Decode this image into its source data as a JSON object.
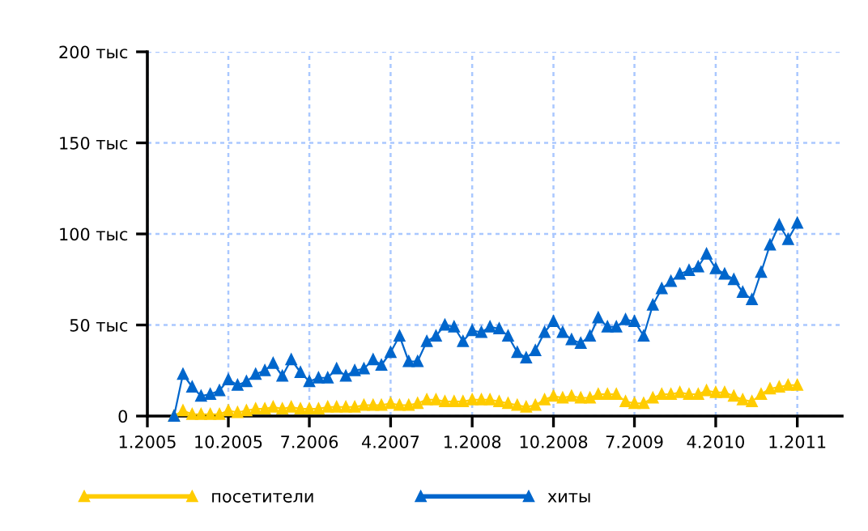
{
  "chart_data": {
    "type": "line",
    "x": [
      "2005-04",
      "2005-05",
      "2005-06",
      "2005-07",
      "2005-08",
      "2005-09",
      "2005-10",
      "2005-11",
      "2005-12",
      "2006-01",
      "2006-02",
      "2006-03",
      "2006-04",
      "2006-05",
      "2006-06",
      "2006-07",
      "2006-08",
      "2006-09",
      "2006-10",
      "2006-11",
      "2006-12",
      "2007-01",
      "2007-02",
      "2007-03",
      "2007-04",
      "2007-05",
      "2007-06",
      "2007-07",
      "2007-08",
      "2007-09",
      "2007-10",
      "2007-11",
      "2007-12",
      "2008-01",
      "2008-02",
      "2008-03",
      "2008-04",
      "2008-05",
      "2008-06",
      "2008-07",
      "2008-08",
      "2008-09",
      "2008-10",
      "2008-11",
      "2008-12",
      "2009-01",
      "2009-02",
      "2009-03",
      "2009-04",
      "2009-05",
      "2009-06",
      "2009-07",
      "2009-08",
      "2009-09",
      "2009-10",
      "2009-11",
      "2009-12",
      "2010-01",
      "2010-02",
      "2010-03",
      "2010-04",
      "2010-05",
      "2010-06",
      "2010-07",
      "2010-08",
      "2010-09",
      "2010-10",
      "2010-11",
      "2010-12",
      "2011-01"
    ],
    "series": [
      {
        "name": "посетители",
        "color": "#ffcc00",
        "values": [
          0,
          3,
          1,
          1,
          1,
          1,
          3,
          2,
          3,
          4,
          4,
          5,
          4,
          5,
          4,
          4,
          4,
          5,
          5,
          5,
          5,
          6,
          6,
          6,
          7,
          6,
          6,
          7,
          9,
          9,
          8,
          8,
          8,
          9,
          9,
          9,
          8,
          7,
          6,
          5,
          6,
          9,
          11,
          10,
          11,
          10,
          10,
          12,
          12,
          12,
          8,
          7,
          7,
          10,
          12,
          12,
          13,
          12,
          12,
          14,
          13,
          13,
          11,
          9,
          8,
          12,
          15,
          16,
          17,
          17
        ]
      },
      {
        "name": "хиты",
        "color": "#0066cc",
        "values": [
          0,
          23,
          16,
          11,
          12,
          14,
          20,
          17,
          19,
          23,
          25,
          29,
          22,
          31,
          24,
          19,
          21,
          21,
          26,
          22,
          25,
          26,
          31,
          28,
          35,
          44,
          30,
          30,
          41,
          44,
          50,
          49,
          41,
          47,
          46,
          49,
          48,
          44,
          35,
          32,
          36,
          46,
          52,
          46,
          42,
          40,
          44,
          54,
          49,
          49,
          53,
          52,
          44,
          61,
          70,
          74,
          78,
          80,
          82,
          89,
          81,
          78,
          75,
          68,
          64,
          79,
          94,
          105,
          97,
          106
        ]
      }
    ],
    "xlim": [
      "2005-01",
      "2011-06"
    ],
    "xticks": [
      {
        "value": "2005-01",
        "label": "1.2005"
      },
      {
        "value": "2005-10",
        "label": "10.2005"
      },
      {
        "value": "2006-07",
        "label": "7.2006"
      },
      {
        "value": "2007-04",
        "label": "4.2007"
      },
      {
        "value": "2008-01",
        "label": "1.2008"
      },
      {
        "value": "2008-10",
        "label": "10.2008"
      },
      {
        "value": "2009-07",
        "label": "7.2009"
      },
      {
        "value": "2010-04",
        "label": "4.2010"
      },
      {
        "value": "2011-01",
        "label": "1.2011"
      }
    ],
    "ylim": [
      0,
      200
    ],
    "yticks": [
      0,
      {
        "value": 50,
        "label": "50 тыс"
      },
      {
        "value": 100,
        "label": "100 тыс"
      },
      {
        "value": 150,
        "label": "150 тыс"
      },
      {
        "value": 200,
        "label": "200 тыс"
      }
    ],
    "grid": true,
    "legend": "bottom",
    "marker": "triangle",
    "line_style": "solid"
  }
}
